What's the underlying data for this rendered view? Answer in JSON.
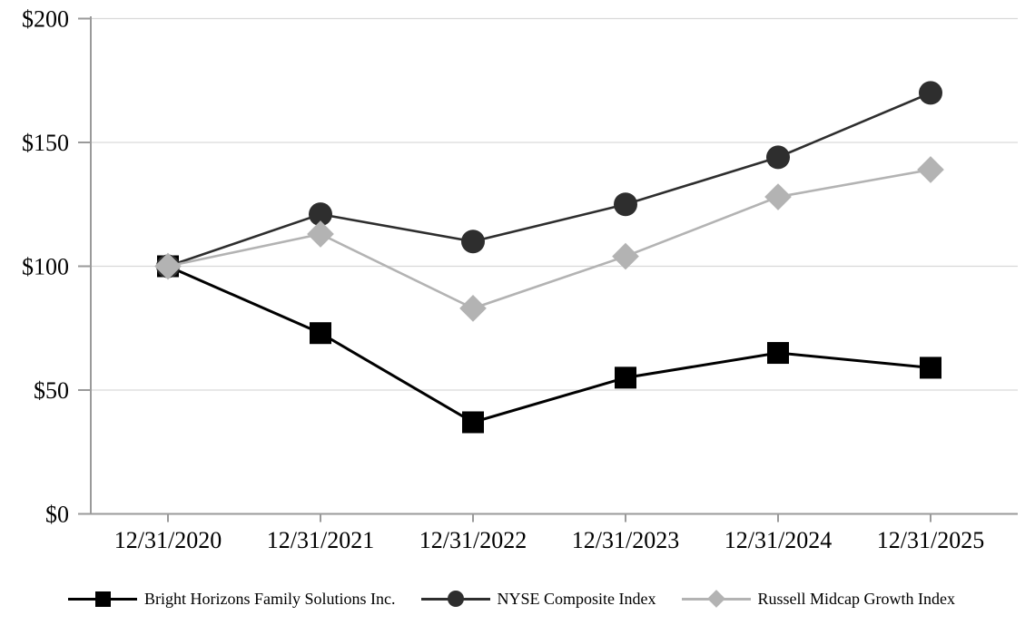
{
  "chart_data": {
    "type": "line",
    "title": "",
    "xlabel": "",
    "ylabel": "",
    "x_labels": [
      "12/31/2020",
      "12/31/2021",
      "12/31/2022",
      "12/31/2023",
      "12/31/2024",
      "12/31/2025"
    ],
    "y_ticks": [
      {
        "label": "$0",
        "value": 0
      },
      {
        "label": "$50",
        "value": 50
      },
      {
        "label": "$100",
        "value": 100
      },
      {
        "label": "$150",
        "value": 150
      },
      {
        "label": "$200",
        "value": 200
      }
    ],
    "ylim": [
      0,
      200
    ],
    "grid": true,
    "legend_position": "bottom",
    "series": [
      {
        "name": "Bright Horizons Family Solutions Inc.",
        "marker": "square",
        "color": "#000000",
        "line_width": 3,
        "values": [
          100,
          73,
          37,
          55,
          65,
          59
        ]
      },
      {
        "name": "NYSE Composite Index",
        "marker": "circle",
        "color": "#2e2e2e",
        "line_width": 2.6,
        "values": [
          100,
          121,
          110,
          125,
          144,
          170
        ]
      },
      {
        "name": "Russell Midcap Growth Index",
        "marker": "diamond",
        "color": "#b3b3b3",
        "line_width": 2.6,
        "values": [
          100,
          113,
          83,
          104,
          128,
          139
        ]
      }
    ]
  },
  "colors": {
    "background": "#ffffff",
    "gridline": "#d9d9d9",
    "axis": "#9a9a9a",
    "text": "#000000"
  }
}
